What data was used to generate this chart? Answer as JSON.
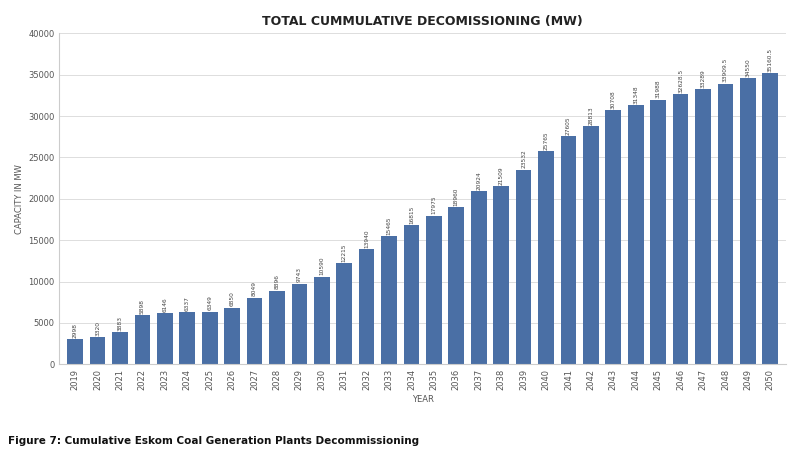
{
  "title": "TOTAL CUMMULATIVE DECOMISSIONING (MW)",
  "xlabel": "YEAR",
  "ylabel": "CAPACITY IN MW",
  "years": [
    2019,
    2020,
    2021,
    2022,
    2023,
    2024,
    2025,
    2026,
    2027,
    2028,
    2029,
    2030,
    2031,
    2032,
    2033,
    2034,
    2035,
    2036,
    2037,
    2038,
    2039,
    2040,
    2041,
    2042,
    2043,
    2044,
    2045,
    2046,
    2047,
    2048,
    2049,
    2050
  ],
  "values": [
    2998,
    3320,
    3883,
    5898,
    6146,
    6337,
    6349,
    6850,
    8049,
    8896,
    9743,
    10590,
    12215,
    13940,
    15465,
    16815,
    17975,
    18960,
    20924,
    21509,
    23532,
    25765,
    27605,
    28813,
    30708,
    31348,
    31988,
    32628.5,
    33289,
    33909.5,
    34550,
    35160.5
  ],
  "bar_color": "#4a6fa5",
  "ylim": [
    0,
    40000
  ],
  "yticks": [
    0,
    5000,
    10000,
    15000,
    20000,
    25000,
    30000,
    35000,
    40000
  ],
  "title_fontsize": 9,
  "axis_label_fontsize": 6,
  "tick_label_fontsize": 6,
  "value_label_fontsize": 4.2,
  "figure_caption": "Figure 7: Cumulative Eskom Coal Generation Plants Decommissioning",
  "bg_color": "#ffffff",
  "grid_color": "#d0d0d0"
}
